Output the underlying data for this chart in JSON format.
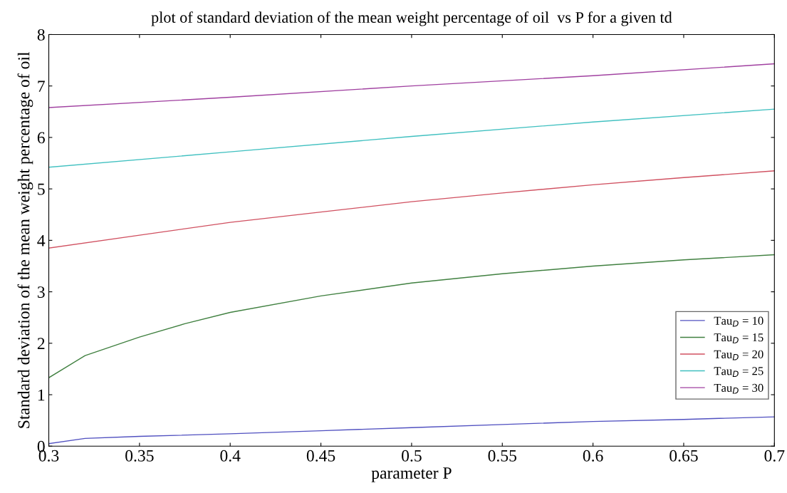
{
  "chart_data": {
    "type": "line",
    "title": "plot of standard deviation of the mean weight percentage of oil  vs P for a given td",
    "xlabel": "parameter P",
    "ylabel": "Standard deviation of the mean weight percentage of oil",
    "xlim": [
      0.3,
      0.7
    ],
    "xticks": [
      0.3,
      0.35,
      0.4,
      0.45,
      0.5,
      0.55,
      0.6,
      0.65,
      0.7
    ],
    "ylim": [
      0,
      8
    ],
    "yticks": [
      0,
      1,
      2,
      3,
      4,
      5,
      6,
      7,
      8
    ],
    "grid": false,
    "legend": "bottom right",
    "marker": "none",
    "line_style": "solid",
    "series": [
      {
        "name": "Tau$_{D}$ = 10",
        "color": "#5050c0",
        "x": [
          0.3,
          0.32,
          0.35,
          0.4,
          0.45,
          0.5,
          0.55,
          0.6,
          0.65,
          0.7
        ],
        "values": [
          0.05,
          0.15,
          0.19,
          0.24,
          0.3,
          0.36,
          0.42,
          0.48,
          0.52,
          0.57
        ]
      },
      {
        "name": "Tau$_{D}$ = 15",
        "color": "#408040",
        "x": [
          0.3,
          0.32,
          0.35,
          0.375,
          0.4,
          0.45,
          0.5,
          0.55,
          0.6,
          0.65,
          0.7
        ],
        "values": [
          1.33,
          1.76,
          2.12,
          2.38,
          2.6,
          2.92,
          3.17,
          3.35,
          3.5,
          3.62,
          3.72
        ]
      },
      {
        "name": "Tau$_{D}$ = 20",
        "color": "#d05060",
        "x": [
          0.3,
          0.35,
          0.4,
          0.45,
          0.5,
          0.55,
          0.6,
          0.65,
          0.7
        ],
        "values": [
          3.85,
          4.1,
          4.35,
          4.55,
          4.75,
          4.92,
          5.08,
          5.22,
          5.35
        ]
      },
      {
        "name": "Tau$_{D}$ = 25",
        "color": "#40c0c0",
        "x": [
          0.3,
          0.4,
          0.5,
          0.6,
          0.7
        ],
        "values": [
          5.42,
          5.72,
          6.02,
          6.3,
          6.55
        ]
      },
      {
        "name": "Tau$_{D}$ = 30",
        "color": "#a040a0",
        "x": [
          0.3,
          0.4,
          0.5,
          0.6,
          0.7
        ],
        "values": [
          6.58,
          6.78,
          7.0,
          7.2,
          7.43
        ]
      }
    ]
  }
}
